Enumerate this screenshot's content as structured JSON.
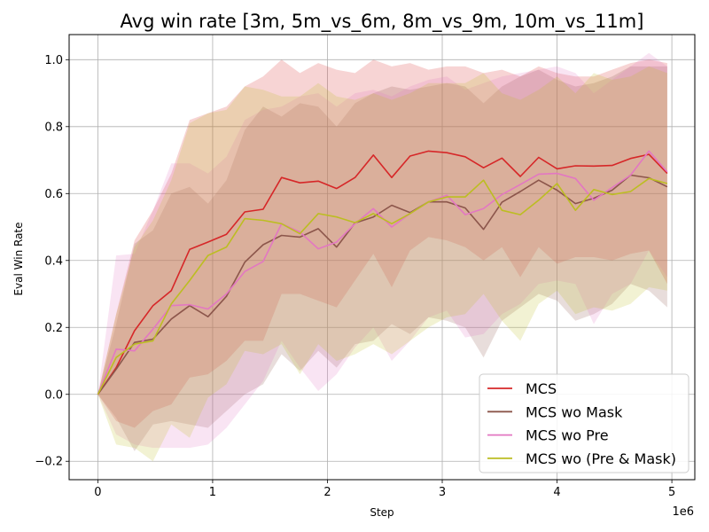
{
  "chart_data": {
    "type": "line",
    "title": "Avg win rate [3m, 5m_vs_6m, 8m_vs_9m, 10m_vs_11m]",
    "xlabel": "Step",
    "ylabel": "Eval Win Rate",
    "x_offset_label": "1e6",
    "xlim": [
      -0.25,
      5.2
    ],
    "ylim": [
      -0.255,
      1.075
    ],
    "xticks": [
      0,
      1,
      2,
      3,
      4,
      5
    ],
    "xtick_labels": [
      "0",
      "1",
      "2",
      "3",
      "4",
      "5"
    ],
    "yticks": [
      -0.2,
      0.0,
      0.2,
      0.4,
      0.6,
      0.8,
      1.0
    ],
    "ytick_labels": [
      "−0.2",
      "0.0",
      "0.2",
      "0.4",
      "0.6",
      "0.8",
      "1.0"
    ],
    "grid": true,
    "legend_position": "lower-right",
    "x": [
      0,
      0.16,
      0.32,
      0.48,
      0.64,
      0.8,
      0.96,
      1.12,
      1.28,
      1.44,
      1.6,
      1.76,
      1.92,
      2.08,
      2.24,
      2.4,
      2.56,
      2.72,
      2.88,
      3.04,
      3.2,
      3.36,
      3.52,
      3.68,
      3.84,
      4.0,
      4.16,
      4.32,
      4.48,
      4.64,
      4.8,
      4.96
    ],
    "series": [
      {
        "name": "MCS",
        "color": "#d62728",
        "values": [
          0.0,
          0.08,
          0.19,
          0.265,
          0.31,
          0.433,
          0.455,
          0.478,
          0.545,
          0.553,
          0.648,
          0.632,
          0.637,
          0.615,
          0.648,
          0.715,
          0.648,
          0.712,
          0.727,
          0.722,
          0.71,
          0.677,
          0.706,
          0.651,
          0.708,
          0.674,
          0.683,
          0.682,
          0.684,
          0.705,
          0.717,
          0.66
        ],
        "band_upper": [
          0.0,
          0.24,
          0.46,
          0.55,
          0.66,
          0.82,
          0.84,
          0.86,
          0.92,
          0.95,
          1.0,
          0.96,
          0.99,
          0.97,
          0.96,
          1.0,
          0.98,
          0.99,
          0.97,
          0.98,
          0.98,
          0.96,
          0.97,
          0.95,
          0.98,
          0.96,
          0.95,
          0.95,
          0.97,
          0.99,
          1.0,
          0.99
        ],
        "band_lower": [
          0.0,
          -0.08,
          -0.1,
          -0.05,
          -0.03,
          0.05,
          0.06,
          0.1,
          0.16,
          0.16,
          0.3,
          0.3,
          0.28,
          0.26,
          0.34,
          0.42,
          0.32,
          0.43,
          0.47,
          0.46,
          0.44,
          0.4,
          0.44,
          0.35,
          0.44,
          0.39,
          0.41,
          0.41,
          0.4,
          0.42,
          0.43,
          0.33
        ]
      },
      {
        "name": "MCS wo Mask",
        "color": "#8c564b",
        "values": [
          0.0,
          0.075,
          0.155,
          0.165,
          0.225,
          0.265,
          0.232,
          0.293,
          0.395,
          0.447,
          0.475,
          0.47,
          0.495,
          0.44,
          0.512,
          0.53,
          0.565,
          0.543,
          0.575,
          0.575,
          0.557,
          0.493,
          0.574,
          0.606,
          0.64,
          0.61,
          0.57,
          0.586,
          0.61,
          0.655,
          0.647,
          0.62
        ],
        "band_upper": [
          0.0,
          0.21,
          0.45,
          0.49,
          0.6,
          0.62,
          0.57,
          0.64,
          0.79,
          0.86,
          0.83,
          0.87,
          0.86,
          0.8,
          0.87,
          0.9,
          0.92,
          0.91,
          0.92,
          0.93,
          0.92,
          0.87,
          0.92,
          0.95,
          0.97,
          0.94,
          0.92,
          0.93,
          0.95,
          0.98,
          0.98,
          0.98
        ],
        "band_lower": [
          0.0,
          -0.07,
          -0.17,
          -0.09,
          -0.08,
          -0.09,
          -0.1,
          -0.05,
          0.0,
          0.03,
          0.12,
          0.07,
          0.13,
          0.08,
          0.15,
          0.16,
          0.21,
          0.18,
          0.23,
          0.22,
          0.2,
          0.11,
          0.22,
          0.26,
          0.3,
          0.28,
          0.22,
          0.24,
          0.27,
          0.33,
          0.31,
          0.26
        ]
      },
      {
        "name": "MCS wo Pre",
        "color": "#e377c2",
        "values": [
          0.0,
          0.135,
          0.13,
          0.195,
          0.265,
          0.268,
          0.255,
          0.3,
          0.367,
          0.397,
          0.51,
          0.485,
          0.435,
          0.455,
          0.51,
          0.555,
          0.5,
          0.54,
          0.575,
          0.595,
          0.537,
          0.555,
          0.597,
          0.627,
          0.658,
          0.66,
          0.645,
          0.58,
          0.618,
          0.655,
          0.727,
          0.665
        ],
        "band_upper": [
          0.0,
          0.415,
          0.42,
          0.55,
          0.69,
          0.69,
          0.66,
          0.71,
          0.82,
          0.85,
          0.86,
          0.89,
          0.9,
          0.86,
          0.9,
          0.91,
          0.89,
          0.92,
          0.94,
          0.95,
          0.91,
          0.93,
          0.95,
          0.96,
          0.97,
          0.98,
          0.96,
          0.9,
          0.94,
          0.98,
          1.02,
          0.98
        ],
        "band_lower": [
          0.0,
          -0.12,
          -0.15,
          -0.16,
          -0.16,
          -0.16,
          -0.15,
          -0.1,
          -0.03,
          0.04,
          0.16,
          0.08,
          0.01,
          0.06,
          0.14,
          0.2,
          0.1,
          0.16,
          0.23,
          0.25,
          0.17,
          0.18,
          0.24,
          0.27,
          0.33,
          0.34,
          0.33,
          0.21,
          0.3,
          0.33,
          0.43,
          0.35
        ]
      },
      {
        "name": "MCS wo (Pre & Mask)",
        "color": "#bcbd22",
        "values": [
          0.0,
          0.11,
          0.15,
          0.16,
          0.27,
          0.34,
          0.415,
          0.44,
          0.525,
          0.52,
          0.51,
          0.48,
          0.54,
          0.53,
          0.513,
          0.54,
          0.51,
          0.54,
          0.575,
          0.59,
          0.59,
          0.64,
          0.55,
          0.537,
          0.58,
          0.63,
          0.55,
          0.612,
          0.597,
          0.606,
          0.645,
          0.63
        ],
        "band_upper": [
          0.0,
          0.24,
          0.44,
          0.52,
          0.64,
          0.81,
          0.84,
          0.85,
          0.92,
          0.91,
          0.89,
          0.89,
          0.93,
          0.89,
          0.88,
          0.9,
          0.88,
          0.9,
          0.93,
          0.93,
          0.93,
          0.96,
          0.9,
          0.88,
          0.91,
          0.95,
          0.9,
          0.96,
          0.94,
          0.95,
          0.98,
          0.96
        ],
        "band_lower": [
          0.0,
          -0.15,
          -0.16,
          -0.2,
          -0.09,
          -0.13,
          -0.01,
          0.03,
          0.13,
          0.12,
          0.15,
          0.06,
          0.15,
          0.1,
          0.12,
          0.15,
          0.12,
          0.16,
          0.2,
          0.23,
          0.24,
          0.3,
          0.22,
          0.16,
          0.27,
          0.31,
          0.24,
          0.26,
          0.25,
          0.27,
          0.32,
          0.31
        ]
      }
    ]
  }
}
